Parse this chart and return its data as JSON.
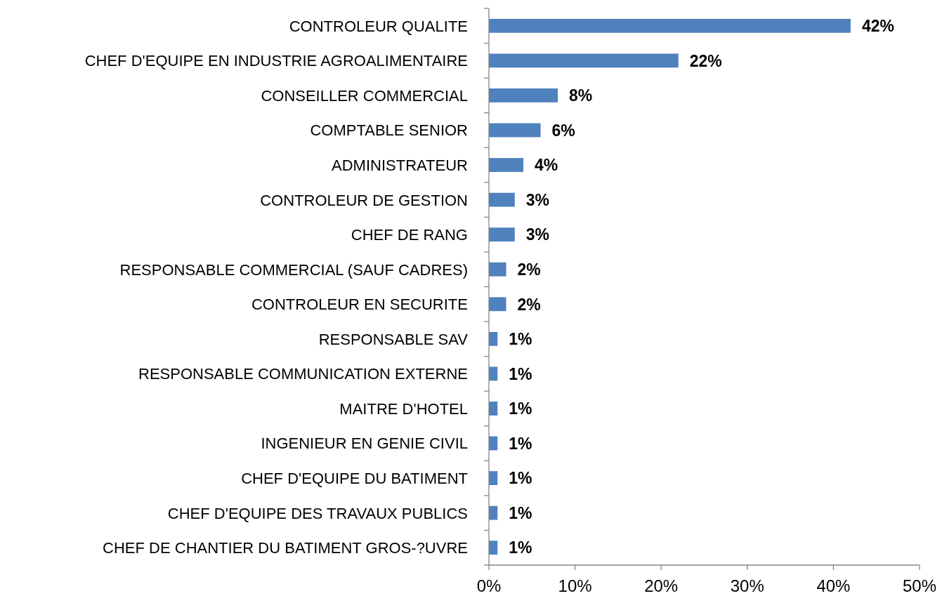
{
  "chart_data": {
    "type": "bar",
    "orientation": "horizontal",
    "categories": [
      "CONTROLEUR QUALITE",
      "CHEF D'EQUIPE EN INDUSTRIE AGROALIMENTAIRE",
      "CONSEILLER COMMERCIAL",
      "COMPTABLE SENIOR",
      "ADMINISTRATEUR",
      "CONTROLEUR DE GESTION",
      "CHEF DE RANG",
      "RESPONSABLE COMMERCIAL (SAUF CADRES)",
      "CONTROLEUR EN SECURITE",
      "RESPONSABLE SAV",
      "RESPONSABLE COMMUNICATION EXTERNE",
      "MAITRE D'HOTEL",
      "INGENIEUR EN GENIE CIVIL",
      "CHEF D'EQUIPE DU BATIMENT",
      "CHEF D'EQUIPE DES TRAVAUX PUBLICS",
      "CHEF DE CHANTIER DU BATIMENT GROS-?UVRE"
    ],
    "values": [
      42,
      22,
      8,
      6,
      4,
      3,
      3,
      2,
      2,
      1,
      1,
      1,
      1,
      1,
      1,
      1
    ],
    "value_labels": [
      "42%",
      "22%",
      "8%",
      "6%",
      "4%",
      "3%",
      "3%",
      "2%",
      "2%",
      "1%",
      "1%",
      "1%",
      "1%",
      "1%",
      "1%",
      "1%"
    ],
    "color": "#4f81bd",
    "xlim": [
      0,
      50
    ],
    "xticks": [
      {
        "value": 0,
        "label": "0%"
      },
      {
        "value": 10,
        "label": "10%"
      },
      {
        "value": 20,
        "label": "20%"
      },
      {
        "value": 30,
        "label": "30%"
      },
      {
        "value": 40,
        "label": "40%"
      },
      {
        "value": 50,
        "label": "50%"
      }
    ]
  }
}
